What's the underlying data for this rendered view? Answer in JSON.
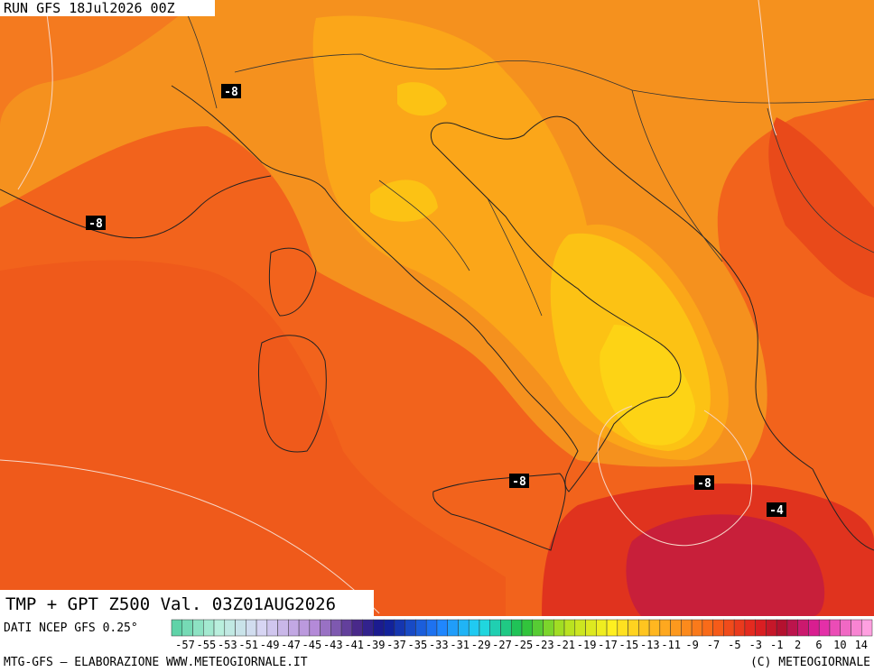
{
  "header": {
    "run": "RUN GFS 18Jul2026 00Z"
  },
  "title": "TMP + GPT Z500 Val. 03Z01AUG2026",
  "source": "DATI NCEP GFS 0.25°",
  "contour_labels": [
    "-8",
    "-8",
    "-8",
    "-8",
    "-4"
  ],
  "colorbar": {
    "labels": [
      "-57",
      "-55",
      "-53",
      "-51",
      "-49",
      "-47",
      "-45",
      "-43",
      "-41",
      "-39",
      "-37",
      "-35",
      "-33",
      "-31",
      "-29",
      "-27",
      "-25",
      "-23",
      "-21",
      "-19",
      "-17",
      "-15",
      "-13",
      "-11",
      "-9",
      "-7",
      "-5",
      "-3",
      "-1",
      "2",
      "6",
      "10",
      "14"
    ]
  },
  "footer": {
    "left": "MTG-GFS — ELABORAZIONE WWW.METEOGIORNALE.IT",
    "right": "(C) METEOGIORNALE"
  }
}
